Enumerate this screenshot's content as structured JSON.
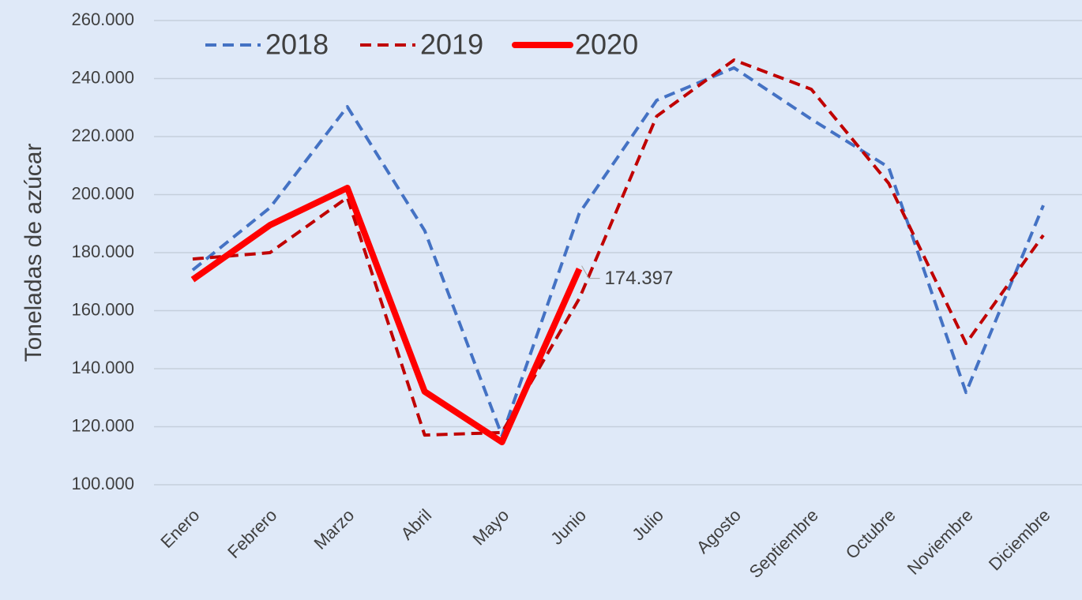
{
  "chart_data": {
    "type": "line",
    "y_label": "Toneladas de azúcar",
    "categories": [
      "Enero",
      "Febrero",
      "Marzo",
      "Abril",
      "Mayo",
      "Junio",
      "Julio",
      "Agosto",
      "Septiembre",
      "Octubre",
      "Noviembre",
      "Diciembre"
    ],
    "series": [
      {
        "name": "2018",
        "color": "#4472c4",
        "dashed": true,
        "values": [
          174000,
          195500,
          230300,
          187600,
          116900,
          193600,
          232500,
          243700,
          226000,
          209400,
          131800,
          196300
        ]
      },
      {
        "name": "2019",
        "color": "#c00000",
        "dashed": true,
        "values": [
          177800,
          180000,
          199000,
          117100,
          118000,
          164200,
          227000,
          246400,
          236300,
          203900,
          148700,
          186000
        ]
      },
      {
        "name": "2020",
        "color": "#ff0000",
        "dashed": false,
        "values": [
          170700,
          189500,
          202300,
          132100,
          114700,
          174397,
          null,
          null,
          null,
          null,
          null,
          null
        ],
        "value_labels": [
          null,
          null,
          null,
          null,
          null,
          "174.397",
          null,
          null,
          null,
          null,
          null,
          null
        ]
      }
    ],
    "ylim": [
      100000,
      260000
    ],
    "yticks": [
      {
        "value": 100000,
        "label": "100.000"
      },
      {
        "value": 120000,
        "label": "120.000"
      },
      {
        "value": 140000,
        "label": "140.000"
      },
      {
        "value": 160000,
        "label": "160.000"
      },
      {
        "value": 180000,
        "label": "180.000"
      },
      {
        "value": 200000,
        "label": "200.000"
      },
      {
        "value": 220000,
        "label": "220.000"
      },
      {
        "value": 240000,
        "label": "240.000"
      },
      {
        "value": 260000,
        "label": "260.000"
      }
    ],
    "grid": true,
    "legend": "top"
  }
}
